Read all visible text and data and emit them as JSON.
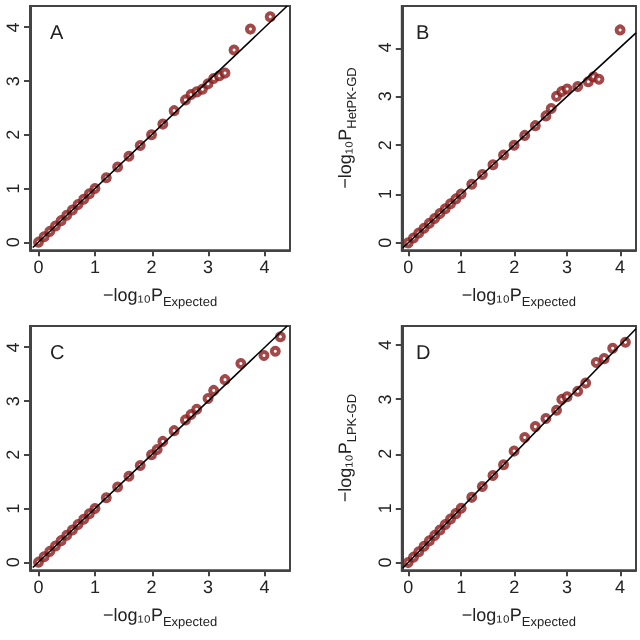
{
  "chart_data": [
    {
      "type": "scatter",
      "annotations": [
        "A"
      ],
      "xlabel": "−log₁₀P$_{Expected}$",
      "xlim": [
        -0.15,
        4.45
      ],
      "ylim": [
        -0.15,
        4.4
      ],
      "xticks": [
        0,
        1,
        2,
        3,
        4
      ],
      "yticks": [
        0,
        1,
        2,
        3,
        4
      ],
      "grid": false,
      "marker": "circle",
      "series": [
        {
          "color": "#8b1a1a",
          "x": [
            0,
            0.1,
            0.2,
            0.3,
            0.4,
            0.5,
            0.6,
            0.7,
            0.8,
            0.9,
            1.0,
            1.2,
            1.4,
            1.6,
            1.8,
            2.0,
            2.2,
            2.4,
            2.6,
            2.7,
            2.8,
            2.9,
            3.0,
            3.1,
            3.2,
            3.3,
            3.46,
            3.75,
            4.1
          ],
          "values": [
            0,
            0.1,
            0.2,
            0.3,
            0.4,
            0.5,
            0.6,
            0.7,
            0.8,
            0.9,
            1.0,
            1.2,
            1.4,
            1.6,
            1.8,
            2.0,
            2.2,
            2.45,
            2.65,
            2.75,
            2.8,
            2.85,
            2.95,
            3.05,
            3.1,
            3.15,
            3.58,
            3.97,
            4.2
          ]
        },
        {
          "type": "line",
          "color": "#000000",
          "marker": "none",
          "line_style": "solid",
          "x": [
            -0.1,
            4.4
          ],
          "values": [
            -0.1,
            4.4
          ]
        }
      ]
    },
    {
      "type": "scatter",
      "annotations": [
        "B"
      ],
      "xlabel": "−log₁₀P$_{Expected}$",
      "ylabel": "−log₁₀P$_{HetPK-GD}$",
      "xlim": [
        -0.12,
        4.3
      ],
      "ylim": [
        -0.15,
        4.85
      ],
      "xticks": [
        0,
        1,
        2,
        3,
        4
      ],
      "yticks": [
        0,
        1,
        2,
        3,
        4
      ],
      "grid": false,
      "marker": "circle",
      "series": [
        {
          "color": "#8b1a1a",
          "x": [
            0,
            0.1,
            0.2,
            0.3,
            0.4,
            0.5,
            0.6,
            0.7,
            0.8,
            0.9,
            1.0,
            1.2,
            1.4,
            1.6,
            1.8,
            2.0,
            2.2,
            2.4,
            2.6,
            2.7,
            2.8,
            2.9,
            3.0,
            3.2,
            3.4,
            3.5,
            3.6,
            4.0
          ],
          "values": [
            0,
            0.1,
            0.2,
            0.3,
            0.4,
            0.5,
            0.6,
            0.7,
            0.8,
            0.9,
            1.0,
            1.2,
            1.4,
            1.6,
            1.8,
            2.0,
            2.2,
            2.4,
            2.6,
            2.75,
            3.0,
            3.1,
            3.15,
            3.2,
            3.3,
            3.4,
            3.35,
            4.36
          ]
        },
        {
          "type": "line",
          "color": "#000000",
          "marker": "none",
          "line_style": "solid",
          "x": [
            -0.1,
            4.3
          ],
          "values": [
            -0.1,
            4.3
          ]
        }
      ]
    },
    {
      "type": "scatter",
      "annotations": [
        "C"
      ],
      "xlabel": "−log₁₀P$_{Expected}$",
      "xlim": [
        -0.15,
        4.45
      ],
      "ylim": [
        -0.15,
        4.4
      ],
      "xticks": [
        0,
        1,
        2,
        3,
        4
      ],
      "yticks": [
        0,
        1,
        2,
        3,
        4
      ],
      "grid": false,
      "marker": "circle",
      "series": [
        {
          "color": "#8b1a1a",
          "x": [
            0,
            0.1,
            0.2,
            0.3,
            0.4,
            0.5,
            0.6,
            0.7,
            0.8,
            0.9,
            1.0,
            1.2,
            1.4,
            1.6,
            1.8,
            2.0,
            2.1,
            2.2,
            2.4,
            2.6,
            2.7,
            2.8,
            3.0,
            3.1,
            3.3,
            3.58,
            3.99,
            4.19,
            4.28
          ],
          "values": [
            0,
            0.1,
            0.2,
            0.3,
            0.4,
            0.5,
            0.6,
            0.7,
            0.8,
            0.9,
            1.0,
            1.2,
            1.4,
            1.6,
            1.8,
            2.0,
            2.1,
            2.25,
            2.45,
            2.65,
            2.75,
            2.85,
            3.05,
            3.2,
            3.4,
            3.7,
            3.85,
            3.93,
            4.2
          ]
        },
        {
          "type": "line",
          "color": "#000000",
          "marker": "none",
          "line_style": "solid",
          "x": [
            -0.1,
            4.4
          ],
          "values": [
            -0.1,
            4.4
          ]
        }
      ]
    },
    {
      "type": "scatter",
      "annotations": [
        "D"
      ],
      "xlabel": "−log₁₀P$_{Expected}$",
      "ylabel": "−log₁₀P$_{LPK-GD}$",
      "xlim": [
        -0.12,
        4.3
      ],
      "ylim": [
        -0.14,
        4.35
      ],
      "xticks": [
        0,
        1,
        2,
        3,
        4
      ],
      "yticks": [
        0,
        1,
        2,
        3,
        4
      ],
      "grid": false,
      "marker": "circle",
      "series": [
        {
          "color": "#8b1a1a",
          "x": [
            0,
            0.1,
            0.2,
            0.3,
            0.4,
            0.5,
            0.6,
            0.7,
            0.8,
            0.9,
            1.0,
            1.2,
            1.4,
            1.6,
            1.8,
            2.0,
            2.2,
            2.4,
            2.6,
            2.8,
            2.9,
            3.0,
            3.2,
            3.35,
            3.55,
            3.7,
            3.86,
            4.1
          ],
          "values": [
            0,
            0.1,
            0.2,
            0.3,
            0.4,
            0.5,
            0.6,
            0.7,
            0.8,
            0.9,
            1.0,
            1.2,
            1.4,
            1.6,
            1.8,
            2.05,
            2.3,
            2.5,
            2.65,
            2.8,
            3.0,
            3.05,
            3.15,
            3.3,
            3.68,
            3.75,
            3.94,
            4.05
          ]
        },
        {
          "type": "line",
          "color": "#000000",
          "marker": "none",
          "line_style": "solid",
          "x": [
            -0.1,
            4.3
          ],
          "values": [
            -0.1,
            4.3
          ]
        }
      ]
    }
  ]
}
